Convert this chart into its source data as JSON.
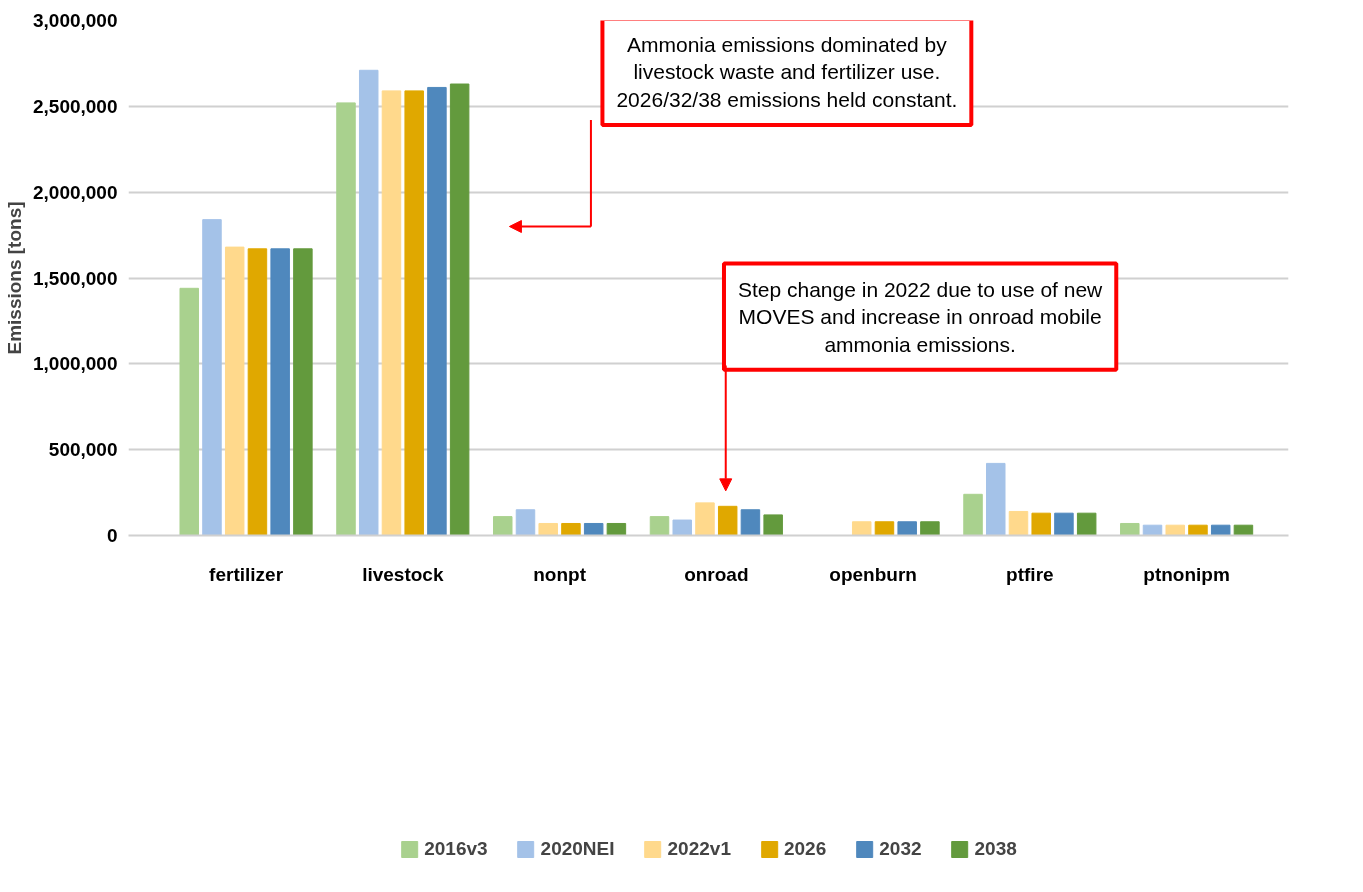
{
  "chart_data": {
    "type": "bar",
    "ylabel": "Emissions [tons]",
    "categories": [
      "fertilizer",
      "livestock",
      "nonpt",
      "onroad",
      "openburn",
      "ptfire",
      "ptnonipm"
    ],
    "series": [
      {
        "name": "2016v3",
        "color": "#a9d18e",
        "values": [
          1440000,
          2520000,
          110000,
          110000,
          null,
          240000,
          70000
        ]
      },
      {
        "name": "2020NEI",
        "color": "#a4c2e8",
        "values": [
          1840000,
          2710000,
          150000,
          90000,
          null,
          420000,
          60000
        ]
      },
      {
        "name": "2022v1",
        "color": "#ffd98c",
        "values": [
          1680000,
          2590000,
          70000,
          190000,
          80000,
          140000,
          60000
        ]
      },
      {
        "name": "2026",
        "color": "#e0a800",
        "values": [
          1670000,
          2590000,
          70000,
          170000,
          80000,
          130000,
          60000
        ]
      },
      {
        "name": "2032",
        "color": "#4f88bd",
        "values": [
          1670000,
          2610000,
          70000,
          150000,
          80000,
          130000,
          60000
        ]
      },
      {
        "name": "2038",
        "color": "#639a3d",
        "values": [
          1670000,
          2630000,
          70000,
          120000,
          80000,
          130000,
          60000
        ]
      }
    ],
    "ylim": [
      0,
      3000000
    ],
    "yticks": [
      0,
      {
        "value": 500000,
        "label": "500,000"
      },
      {
        "value": 1000000,
        "label": "1,000,000"
      },
      {
        "value": 1500000,
        "label": "1,500,000"
      },
      {
        "value": 2000000,
        "label": "2,000,000"
      },
      {
        "value": 2500000,
        "label": "2,500,000"
      },
      {
        "value": 3000000,
        "label": "3,000,000"
      }
    ],
    "grid": "y",
    "legend": "bottom",
    "annotations": [
      "Ammonia emissions dominated by\nlivestock waste and fertilizer use.\n2026/32/38 emissions held constant.",
      "Step change in 2022 due to use of new\nMOVES and increase in onroad mobile\nammonia emissions."
    ]
  }
}
